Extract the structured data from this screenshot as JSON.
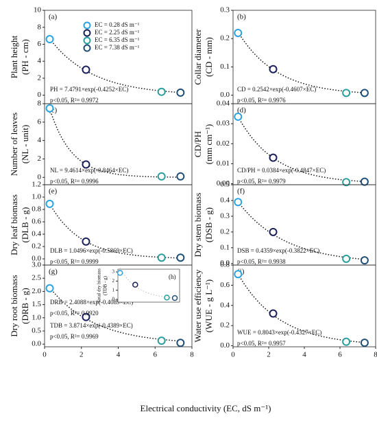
{
  "chart_data": [
    {
      "type": "scatter",
      "title": "(a)",
      "ylabel": [
        "Plant height",
        "(PH - cm)"
      ],
      "x": [
        0.28,
        2.25,
        6.35,
        7.38
      ],
      "values": [
        6.6,
        3.0,
        0.4,
        0.3
      ],
      "colors": [
        "#2aa3df",
        "#1b1f5a",
        "#2a9d9d",
        "#1f4e79"
      ],
      "xlim": [
        0,
        8
      ],
      "ylim": [
        -1,
        10
      ],
      "yticks": [
        0,
        2,
        4,
        6,
        8,
        10
      ],
      "annotations": [
        "PH = 7.4791×exp(-0.4252×EC)",
        "p<0.05, R²= 0.9972"
      ],
      "legend": [
        "EC = 0.28 dS m⁻¹",
        "EC = 2.25 dS m⁻¹",
        "EC = 6.35 dS m⁻¹",
        "EC = 7.38 dS m⁻¹"
      ]
    },
    {
      "type": "scatter",
      "title": "(b)",
      "ylabel": [
        "Collar diameter",
        "(CD - mm)"
      ],
      "x": [
        0.28,
        2.25,
        6.35,
        7.38
      ],
      "values": [
        0.22,
        0.092,
        0.008,
        0.008
      ],
      "colors": [
        "#2aa3df",
        "#1b1f5a",
        "#2a9d9d",
        "#1f4e79"
      ],
      "xlim": [
        0,
        8
      ],
      "ylim": [
        -0.03,
        0.3
      ],
      "yticks": [
        {
          "value": 0,
          "label": "0.0"
        },
        0.1,
        0.2,
        0.3
      ],
      "annotations": [
        "CD = 0.2542×exp(-0.4607×EC)",
        "p<0.05, R²= 0.9976"
      ]
    },
    {
      "type": "scatter",
      "title": "(c)",
      "ylabel": [
        "Number of leaves",
        "(NL - unit)"
      ],
      "x": [
        0.28,
        2.25,
        6.35,
        7.38
      ],
      "values": [
        7.5,
        1.4,
        0.1,
        0.1
      ],
      "colors": [
        "#2aa3df",
        "#1b1f5a",
        "#2a9d9d",
        "#1f4e79"
      ],
      "xlim": [
        0,
        8
      ],
      "ylim": [
        -0.8,
        8
      ],
      "yticks": [
        0,
        2,
        4,
        6,
        8
      ],
      "annotations": [
        "NL = 9.4614×exp(-0.8464×EC)",
        "p<0.05, R²= 0.9996"
      ]
    },
    {
      "type": "scatter",
      "title": "(d)",
      "ylabel": [
        "CD/PH",
        "(mm cm⁻¹)"
      ],
      "x": [
        0.28,
        2.25,
        6.35,
        7.38
      ],
      "values": [
        0.0335,
        0.013,
        0.0008,
        0.001
      ],
      "colors": [
        "#2aa3df",
        "#1b1f5a",
        "#2a9d9d",
        "#1f4e79"
      ],
      "xlim": [
        0,
        8
      ],
      "ylim": [
        -0.0005,
        0.04
      ],
      "yticks": [
        {
          "value": 0,
          "label": "0.00"
        },
        0.01,
        0.02,
        0.03,
        0.04
      ],
      "annotations": [
        "CD/PH = 0.0384×exp(-0.4847×EC)",
        "p<0.05, R²= 0.9979"
      ]
    },
    {
      "type": "scatter",
      "title": "(e)",
      "ylabel": [
        "Dry leaf biomass",
        "(DLB - g)"
      ],
      "x": [
        0.28,
        2.25,
        6.35,
        7.38
      ],
      "values": [
        0.89,
        0.28,
        0.02,
        0.02
      ],
      "colors": [
        "#2aa3df",
        "#1b1f5a",
        "#2a9d9d",
        "#1f4e79"
      ],
      "xlim": [
        0,
        8
      ],
      "ylim": [
        -0.1,
        1.2
      ],
      "yticks": [
        {
          "value": 0,
          "label": "0.0"
        },
        0.2,
        0.4,
        0.6,
        0.8,
        {
          "value": 1,
          "label": "1.0"
        },
        1.2
      ],
      "annotations": [
        "DLB = 1.0496×exp(-0.5869×EC)",
        "p<0.05, R²= 0.9999"
      ]
    },
    {
      "type": "scatter",
      "title": "(f)",
      "ylabel": [
        "Dry stem biomass",
        "(DSB - g)"
      ],
      "x": [
        0.28,
        2.25,
        6.35,
        7.38
      ],
      "values": [
        0.39,
        0.2,
        0.03,
        0.02
      ],
      "colors": [
        "#2aa3df",
        "#1b1f5a",
        "#2a9d9d",
        "#1f4e79"
      ],
      "xlim": [
        0,
        8
      ],
      "ylim": [
        -0.01,
        0.5
      ],
      "yticks": [
        {
          "value": 0,
          "label": "0.0"
        },
        0.1,
        0.2,
        0.3,
        0.4,
        0.5
      ],
      "annotations": [
        "DSB = 0.4359×exp(-0.3822×EC)",
        "p<0.05, R²= 0.9938"
      ]
    },
    {
      "type": "scatter",
      "title": "(g)",
      "ylabel": [
        "Dry root biomass",
        "(DRB - g)"
      ],
      "x": [
        0.28,
        2.25,
        6.35,
        7.38
      ],
      "values": [
        2.12,
        1.03,
        0.13,
        0.05
      ],
      "colors": [
        "#2aa3df",
        "#1b1f5a",
        "#2a9d9d",
        "#1f4e79"
      ],
      "xlim": [
        0,
        8
      ],
      "ylim": [
        -0.1,
        3
      ],
      "yticks": [
        {
          "value": 0,
          "label": "0.0"
        },
        0.5,
        {
          "value": 1,
          "label": "1.0"
        },
        1.5,
        {
          "value": 2,
          "label": "2.0"
        },
        2.5,
        {
          "value": 3,
          "label": "3.0"
        }
      ],
      "xticks": [
        0,
        2,
        4,
        6,
        8
      ],
      "annotations": [
        "DRB = 2.4088×exp(-0.4089×EC)",
        "p<0.05, R²= 0.9920"
      ]
    },
    {
      "type": "scatter",
      "title": "(i)",
      "ylabel": [
        "Water use efficiency",
        "(WUE - g L⁻¹)"
      ],
      "x": [
        0.28,
        2.25,
        6.35,
        7.38
      ],
      "values": [
        0.71,
        0.32,
        0.04,
        0.03
      ],
      "colors": [
        "#2aa3df",
        "#1b1f5a",
        "#2a9d9d",
        "#1f4e79"
      ],
      "xlim": [
        0,
        8
      ],
      "ylim": [
        -0.01,
        0.8
      ],
      "yticks": [
        {
          "value": 0,
          "label": "0.0"
        },
        0.2,
        0.4,
        0.6,
        0.8
      ],
      "xticks": [
        0,
        2,
        4,
        6,
        8
      ],
      "annotations": [
        "WUE = 0.8043×exp(-0.4327×EC)",
        "p<0.05, R²= 0.9957"
      ]
    },
    {
      "type": "scatter",
      "title": "(h)",
      "ylabel": [
        "Total dry biomass",
        "(TDB - g)"
      ],
      "x": [
        0.28,
        2.25,
        6.35,
        7.38
      ],
      "values": [
        2.9,
        1.6,
        0.2,
        0.15
      ],
      "colors": [
        "#2aa3df",
        "#1b1f5a",
        "#2a9d9d",
        "#1f4e79"
      ],
      "xlim": [
        0,
        8
      ],
      "ylim": [
        -0.3,
        3.3
      ],
      "yticks": [
        0,
        1,
        2,
        3
      ],
      "annotations": [
        "TDB = 3.8714×exp(-0.4389×EC)",
        "p<0.05, R²= 0.9969"
      ]
    }
  ],
  "x_axis_label": "Electrical conductivity (EC, dS m⁻¹)"
}
